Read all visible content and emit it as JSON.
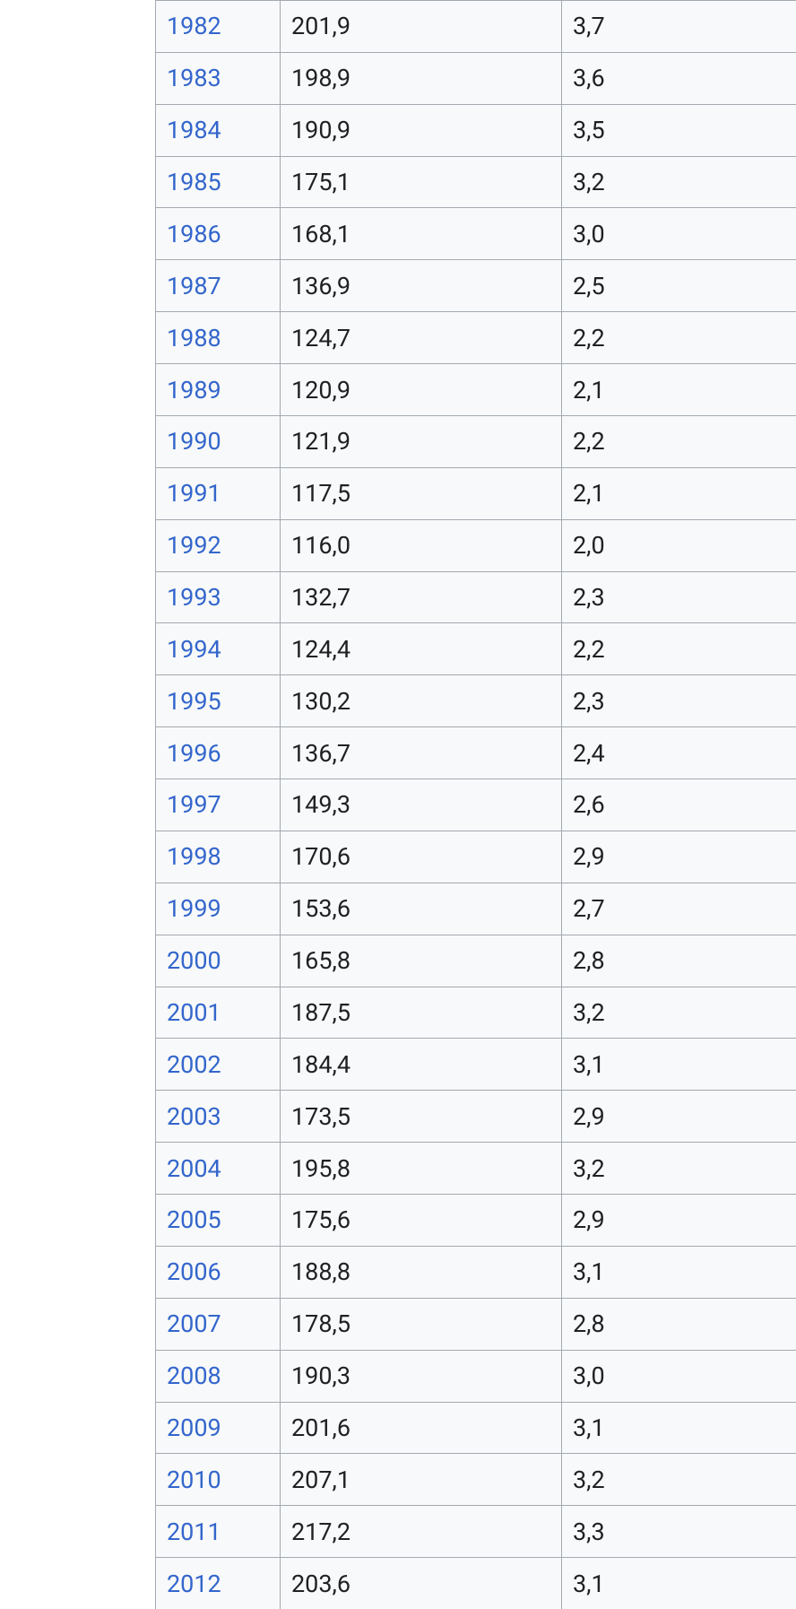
{
  "table": {
    "rows": [
      [
        "1982",
        "201,9",
        "3,7"
      ],
      [
        "1983",
        "198,9",
        "3,6"
      ],
      [
        "1984",
        "190,9",
        "3,5"
      ],
      [
        "1985",
        "175,1",
        "3,2"
      ],
      [
        "1986",
        "168,1",
        "3,0"
      ],
      [
        "1987",
        "136,9",
        "2,5"
      ],
      [
        "1988",
        "124,7",
        "2,2"
      ],
      [
        "1989",
        "120,9",
        "2,1"
      ],
      [
        "1990",
        "121,9",
        "2,2"
      ],
      [
        "1991",
        "117,5",
        "2,1"
      ],
      [
        "1992",
        "116,0",
        "2,0"
      ],
      [
        "1993",
        "132,7",
        "2,3"
      ],
      [
        "1994",
        "124,4",
        "2,2"
      ],
      [
        "1995",
        "130,2",
        "2,3"
      ],
      [
        "1996",
        "136,7",
        "2,4"
      ],
      [
        "1997",
        "149,3",
        "2,6"
      ],
      [
        "1998",
        "170,6",
        "2,9"
      ],
      [
        "1999",
        "153,6",
        "2,7"
      ],
      [
        "2000",
        "165,8",
        "2,8"
      ],
      [
        "2001",
        "187,5",
        "3,2"
      ],
      [
        "2002",
        "184,4",
        "3,1"
      ],
      [
        "2003",
        "173,5",
        "2,9"
      ],
      [
        "2004",
        "195,8",
        "3,2"
      ],
      [
        "2005",
        "175,6",
        "2,9"
      ],
      [
        "2006",
        "188,8",
        "3,1"
      ],
      [
        "2007",
        "178,5",
        "2,8"
      ],
      [
        "2008",
        "190,3",
        "3,0"
      ],
      [
        "2009",
        "201,6",
        "3,1"
      ],
      [
        "2010",
        "207,1",
        "3,2"
      ],
      [
        "2011",
        "217,2",
        "3,3"
      ],
      [
        "2012",
        "203,6",
        "3,1"
      ]
    ]
  }
}
